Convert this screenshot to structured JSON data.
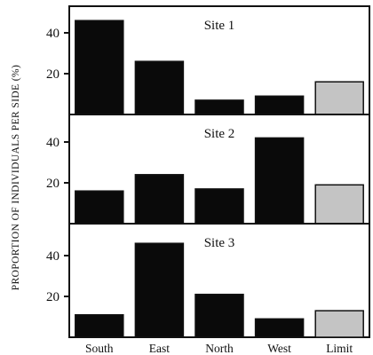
{
  "chart_data": {
    "type": "bar",
    "ylabel": "PROPORTION OF INDIVIDUALS PER SIDE (%)",
    "categories": [
      "South",
      "East",
      "North",
      "West",
      "Limit"
    ],
    "ylim": [
      0,
      55
    ],
    "yticks": [
      20,
      40
    ],
    "colors": {
      "bar": "#0a0a0a",
      "limit_bar": "#c4c4c4"
    },
    "panels": [
      {
        "title": "Site 1",
        "values": [
          46,
          26,
          7,
          9,
          16
        ]
      },
      {
        "title": "Site 2",
        "values": [
          16,
          24,
          17,
          42,
          19
        ]
      },
      {
        "title": "Site 3",
        "values": [
          11,
          46,
          21,
          9,
          13
        ]
      }
    ]
  }
}
